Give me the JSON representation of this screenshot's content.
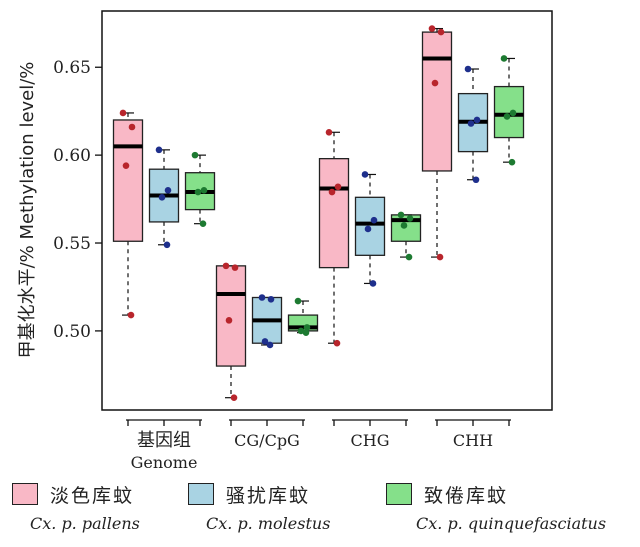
{
  "chart_data": {
    "type": "box",
    "ylabel": "甲基化水平/%  Methylation  level/%",
    "ylim": [
      0.455,
      0.682
    ],
    "yticks": [
      0.5,
      0.55,
      0.6,
      0.65
    ],
    "ytick_labels": [
      "0.50",
      "0.55",
      "0.60",
      "0.65"
    ],
    "categories": [
      {
        "label_cn": "基因组",
        "label_en": "Genome"
      },
      {
        "label_cn": "",
        "label_en": "CG/CpG"
      },
      {
        "label_cn": "",
        "label_en": "CHG"
      },
      {
        "label_cn": "",
        "label_en": "CHH"
      }
    ],
    "series": [
      {
        "name_cn": "淡色库蚊",
        "name_sci": "Cx.  p.  pallens",
        "fill": "#f9b8c6",
        "point": "#b8252c",
        "boxes": [
          {
            "min": 0.509,
            "q1": 0.551,
            "median": 0.605,
            "q3": 0.62,
            "max": 0.624,
            "points": [
              0.624,
              0.616,
              0.594,
              0.509
            ]
          },
          {
            "min": 0.462,
            "q1": 0.48,
            "median": 0.521,
            "q3": 0.537,
            "max": 0.537,
            "points": [
              0.537,
              0.536,
              0.506,
              0.462
            ]
          },
          {
            "min": 0.493,
            "q1": 0.536,
            "median": 0.581,
            "q3": 0.598,
            "max": 0.613,
            "points": [
              0.613,
              0.582,
              0.579,
              0.493
            ]
          },
          {
            "min": 0.542,
            "q1": 0.591,
            "median": 0.655,
            "q3": 0.67,
            "max": 0.672,
            "points": [
              0.672,
              0.67,
              0.641,
              0.542
            ]
          }
        ]
      },
      {
        "name_cn": "骚扰库蚊",
        "name_sci": "Cx.  p.  molestus",
        "fill": "#a9d3e3",
        "point": "#1e2f8c",
        "boxes": [
          {
            "min": 0.549,
            "q1": 0.562,
            "median": 0.577,
            "q3": 0.592,
            "max": 0.603,
            "points": [
              0.603,
              0.58,
              0.576,
              0.549
            ]
          },
          {
            "min": 0.492,
            "q1": 0.493,
            "median": 0.506,
            "q3": 0.519,
            "max": 0.519,
            "points": [
              0.519,
              0.518,
              0.494,
              0.492
            ]
          },
          {
            "min": 0.527,
            "q1": 0.543,
            "median": 0.561,
            "q3": 0.576,
            "max": 0.589,
            "points": [
              0.589,
              0.563,
              0.558,
              0.527
            ]
          },
          {
            "min": 0.586,
            "q1": 0.602,
            "median": 0.619,
            "q3": 0.635,
            "max": 0.649,
            "points": [
              0.649,
              0.62,
              0.618,
              0.586
            ]
          }
        ]
      },
      {
        "name_cn": "致倦库蚊",
        "name_sci": "Cx.  p.  quinquefasciatus",
        "fill": "#85e08a",
        "point": "#1d7a31",
        "boxes": [
          {
            "min": 0.561,
            "q1": 0.569,
            "median": 0.579,
            "q3": 0.59,
            "max": 0.6,
            "points": [
              0.6,
              0.58,
              0.579,
              0.561
            ]
          },
          {
            "min": 0.499,
            "q1": 0.5,
            "median": 0.502,
            "q3": 0.509,
            "max": 0.517,
            "points": [
              0.517,
              0.502,
              0.5,
              0.499
            ]
          },
          {
            "min": 0.542,
            "q1": 0.551,
            "median": 0.563,
            "q3": 0.566,
            "max": 0.566,
            "points": [
              0.566,
              0.564,
              0.56,
              0.542
            ]
          },
          {
            "min": 0.596,
            "q1": 0.61,
            "median": 0.623,
            "q3": 0.639,
            "max": 0.655,
            "points": [
              0.655,
              0.624,
              0.622,
              0.596
            ]
          }
        ]
      }
    ]
  }
}
